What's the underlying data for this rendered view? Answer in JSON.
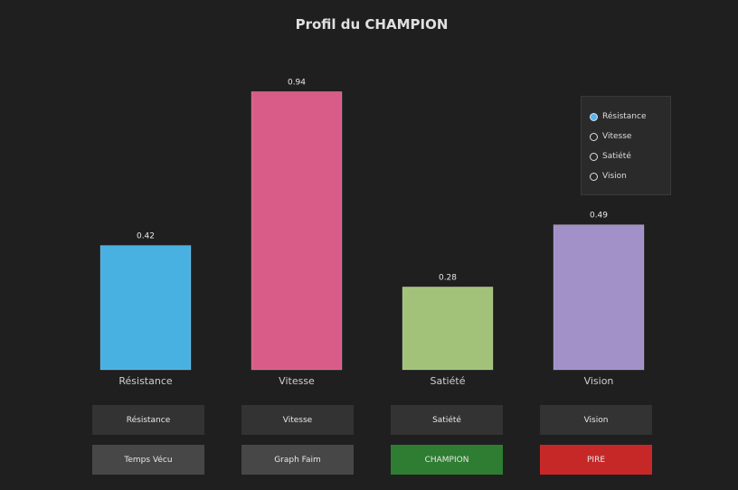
{
  "chart_data": {
    "type": "bar",
    "title": "Profil du CHAMPION",
    "categories": [
      "Résistance",
      "Vitesse",
      "Satiété",
      "Vision"
    ],
    "values": [
      0.42,
      0.94,
      0.28,
      0.49
    ],
    "value_labels": [
      "0.42",
      "0.94",
      "0.28",
      "0.49"
    ],
    "colors": [
      "#49b0e2",
      "#d95c88",
      "#a2c27a",
      "#a290c8"
    ],
    "ylim": [
      0,
      1
    ],
    "grid": false,
    "legend_placement": "top-right"
  },
  "legend": {
    "items": [
      {
        "label": "Résistance",
        "selected": true
      },
      {
        "label": "Vitesse",
        "selected": false
      },
      {
        "label": "Satiété",
        "selected": false
      },
      {
        "label": "Vision",
        "selected": false
      }
    ]
  },
  "buttons": {
    "row1": [
      "Résistance",
      "Vitesse",
      "Satiété",
      "Vision"
    ],
    "row2": [
      "Temps Vécu",
      "Graph Faim",
      "CHAMPION",
      "PIRE"
    ]
  },
  "colors": {
    "background": "#1f1f1f",
    "champion_button": "#2e7d32",
    "worst_button": "#c62828"
  }
}
